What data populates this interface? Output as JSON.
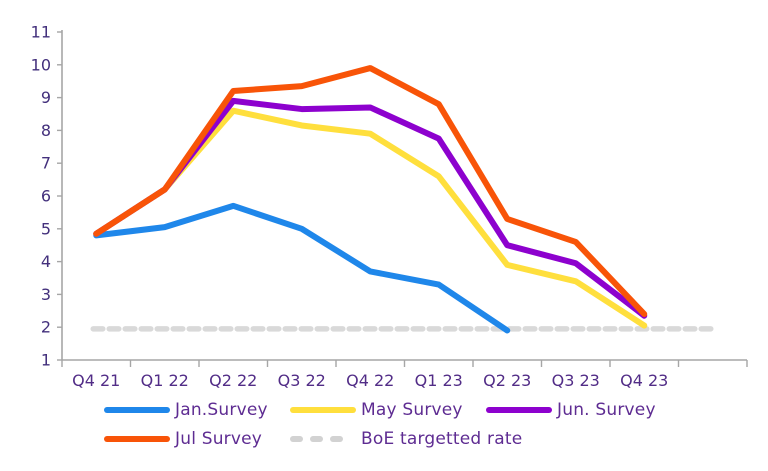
{
  "chart_data": {
    "type": "line",
    "title": "",
    "xlabel": "",
    "ylabel": "",
    "categories": [
      "Q4 21",
      "Q1 22",
      "Q2 22",
      "Q3 22",
      "Q4 22",
      "Q1 23",
      "Q2 23",
      "Q3 23",
      "Q4 23"
    ],
    "series": [
      {
        "name": "Jan.Survey",
        "color": "#1f87ea",
        "values": [
          4.8,
          5.05,
          5.7,
          5.0,
          3.7,
          3.3,
          1.9,
          null,
          null
        ]
      },
      {
        "name": "May Survey",
        "color": "#ffdf3d",
        "values": [
          4.85,
          6.2,
          8.6,
          8.15,
          7.9,
          6.6,
          3.9,
          3.4,
          2.05
        ]
      },
      {
        "name": "Jun. Survey",
        "color": "#8d01ce",
        "values": [
          4.85,
          6.2,
          8.9,
          8.65,
          8.7,
          7.75,
          4.5,
          3.95,
          2.35
        ]
      },
      {
        "name": "Jul Survey",
        "color": "#f85408",
        "values": [
          4.85,
          6.2,
          9.2,
          9.35,
          9.9,
          8.8,
          5.3,
          4.6,
          2.4
        ]
      }
    ],
    "target_line": {
      "name": "BoE targetted rate",
      "color": "#d9d9d9",
      "value": 1.95,
      "style": "dashed"
    },
    "ylim": [
      1,
      11
    ],
    "ytick_step": 1,
    "yticks": [
      1,
      2,
      3,
      4,
      5,
      6,
      7,
      8,
      9,
      10,
      11
    ],
    "grid": false,
    "legend_position": "bottom"
  },
  "legend": {
    "items": [
      {
        "label": "Jan.Survey",
        "color": "#1f87ea",
        "dashed": false
      },
      {
        "label": "May Survey",
        "color": "#ffdf3d",
        "dashed": false
      },
      {
        "label": "Jun. Survey",
        "color": "#8d01ce",
        "dashed": false
      },
      {
        "label": "Jul Survey",
        "color": "#f85408",
        "dashed": false
      },
      {
        "label": "BoE targetted rate",
        "color": "#d2d2d2",
        "dashed": true
      }
    ]
  },
  "colors": {
    "background": "#ffffff",
    "axis_line": "#a6a6a6",
    "axis_values": "#43307c",
    "category_labels": "#522d87",
    "legend_text": "#5e2c92"
  }
}
